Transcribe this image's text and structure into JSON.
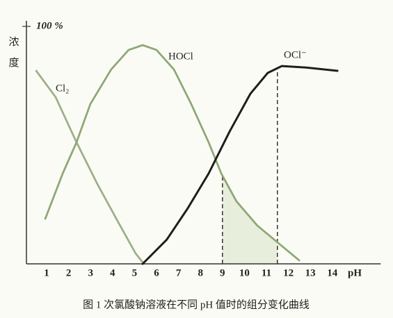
{
  "chart_data": {
    "type": "line",
    "y_label": "浓度",
    "x_label": "pH",
    "caption": "图 1   次氯酸钠溶液在不同 pH 值时的组分变化曲线",
    "xlim": [
      0,
      16.2
    ],
    "ylim": [
      0,
      100
    ],
    "xticks": [
      1,
      2,
      3,
      4,
      5,
      6,
      7,
      8,
      9,
      10,
      11,
      12,
      13,
      14
    ],
    "yticks": [
      {
        "value": 100,
        "label": "100 %"
      }
    ],
    "shaded_range": [
      9,
      11.5
    ],
    "series": [
      {
        "name": "Cl₂",
        "color": "#9db08a",
        "x": [
          0.53,
          1.41,
          2.36,
          3.31,
          4.26,
          5.05,
          5.37
        ],
        "values": [
          81.3,
          70.2,
          51.2,
          33.6,
          17.5,
          4.4,
          0.6
        ]
      },
      {
        "name": "HOCl",
        "color": "#8ea878",
        "x": [
          0.94,
          1.73,
          2.36,
          2.99,
          3.94,
          4.73,
          5.37,
          6.0,
          6.79,
          7.58,
          8.37,
          8.95,
          9.64,
          10.59,
          11.54,
          12.49
        ],
        "values": [
          19.0,
          38.0,
          51.2,
          67.3,
          81.9,
          90.1,
          92.1,
          90.1,
          81.9,
          67.3,
          51.2,
          38.0,
          26.3,
          16.1,
          8.8,
          1.5
        ]
      },
      {
        "name": "OCl⁻",
        "color": "#1e1e1e",
        "x": [
          5.37,
          6.47,
          7.42,
          8.37,
          9.32,
          10.27,
          11.06,
          11.7,
          12.8,
          14.23
        ],
        "values": [
          0,
          10.2,
          23.4,
          38.0,
          55.6,
          71.6,
          80.4,
          83.3,
          82.7,
          81.3
        ]
      }
    ]
  }
}
